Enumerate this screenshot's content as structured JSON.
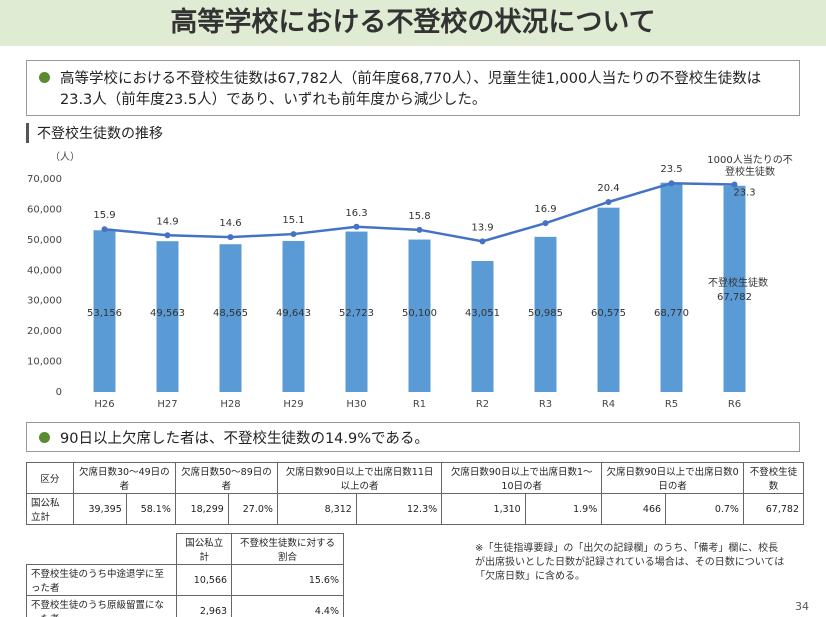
{
  "header": {
    "title": "高等学校における不登校の状況について"
  },
  "bullet1": "高等学校における不登校生徒数は67,782人（前年度68,770人）、児童生徒1,000人当たりの不登校生徒数は23.3人（前年度23.5人）であり、いずれも前年度から減少した。",
  "section_title": "不登校生徒数の推移",
  "chart_data": {
    "type": "bar-line",
    "y_label": "（人）",
    "categories": [
      "H26",
      "H27",
      "H28",
      "H29",
      "H30",
      "R1",
      "R2",
      "R3",
      "R4",
      "R5",
      "R6"
    ],
    "series": [
      {
        "name": "不登校生徒数",
        "type": "bar",
        "color": "#5b9bd5",
        "values": [
          53156,
          49563,
          48565,
          49643,
          52723,
          50100,
          43051,
          50985,
          60575,
          68770,
          67782
        ],
        "value_labels": [
          "53,156",
          "49,563",
          "48,565",
          "49,643",
          "52,723",
          "50,100",
          "43,051",
          "50,985",
          "60,575",
          "68,770",
          "67,782"
        ]
      },
      {
        "name": "1000人当たりの不登校生徒数",
        "type": "line",
        "axis": "y2",
        "color": "#4472c4",
        "values": [
          15.9,
          14.9,
          14.6,
          15.1,
          16.3,
          15.8,
          13.9,
          16.9,
          20.4,
          23.5,
          23.3
        ]
      }
    ],
    "ylim": [
      0,
      70000
    ],
    "yticks": [
      0,
      {
        "value": 10000,
        "label": "10,000"
      },
      {
        "value": 20000,
        "label": "20,000"
      },
      {
        "value": 30000,
        "label": "30,000"
      },
      {
        "value": 40000,
        "label": "40,000"
      },
      {
        "value": 50000,
        "label": "50,000"
      },
      {
        "value": 60000,
        "label": "60,000"
      },
      {
        "value": 70000,
        "label": "70,000"
      }
    ],
    "y2lim": [
      -11,
      24.2
    ]
  },
  "bullet2": "90日以上欠席した者は、不登校生徒数の14.9%である。",
  "table1": {
    "headers": [
      "区分",
      "欠席日数30～49日の者",
      "欠席日数50～89日の者",
      "欠席日数90日以上で出席日数11日以上の者",
      "欠席日数90日以上で出席日数1～10日の者",
      "欠席日数90日以上で出席日数0日の者",
      "不登校生徒数"
    ],
    "rows": [
      [
        "国公私立計",
        "39,395",
        "58.1%",
        "18,299",
        "27.0%",
        "8,312",
        "12.3%",
        "1,310",
        "1.9%",
        "466",
        "0.7%",
        "67,782"
      ]
    ]
  },
  "table2": {
    "headers": [
      "国公私立計",
      "不登校生徒数に対する割合"
    ],
    "rows": [
      [
        "不登校生徒のうち中途退学に至った者",
        "10,566",
        "15.6%"
      ],
      [
        "不登校生徒のうち原級留置になった者",
        "2,963",
        "4.4%"
      ]
    ]
  },
  "note": "※「生徒指導要録」の「出欠の記録欄」のうち、「備考」欄に、校長が出席扱いとした日数が記録されている場合は、その日数については「欠席日数」に含める。",
  "page_number": "34"
}
